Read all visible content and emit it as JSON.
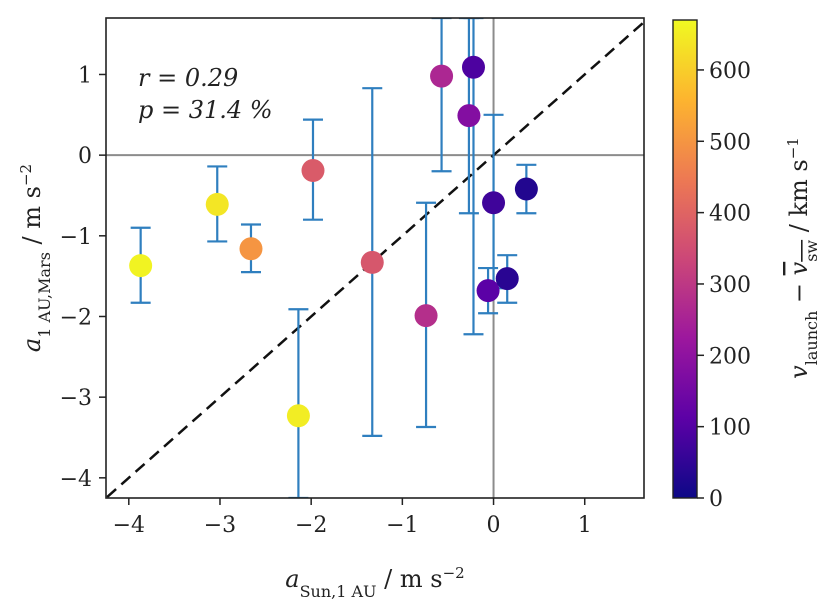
{
  "chart_data": {
    "type": "scatter",
    "xlabel": "a_Sun,1AU / m s^-2",
    "ylabel": "a_1AU,Mars / m s^-2",
    "xlim": [
      -4.25,
      1.65
    ],
    "ylim": [
      -4.25,
      1.7
    ],
    "x_ticks": [
      -4,
      -3,
      -2,
      -1,
      0,
      1
    ],
    "y_ticks": [
      -4,
      -3,
      -2,
      -1,
      0,
      1
    ],
    "x_tick_labels": [
      "−4",
      "−3",
      "−2",
      "−1",
      "0",
      "1"
    ],
    "y_tick_labels": [
      "−4",
      "−3",
      "−2",
      "−1",
      "0",
      "1"
    ],
    "annotations": [
      "r = 0.29",
      "p = 31.4 %"
    ],
    "reference_lines": {
      "horizontal_at": 0,
      "vertical_at": 0,
      "diagonal": "y = x (dashed)"
    },
    "grid": false,
    "error_bar_color": "#2f7fbf",
    "colorbar": {
      "label": "v_launch − v_sw / km s^-1",
      "range": [
        0,
        670
      ],
      "ticks": [
        0,
        100,
        200,
        300,
        400,
        500,
        600
      ],
      "tick_labels": [
        "0",
        "100",
        "200",
        "300",
        "400",
        "500",
        "600"
      ],
      "colormap": "plasma",
      "stops": [
        "#0d0887",
        "#5c01a6",
        "#9c179e",
        "#cc4778",
        "#ed7953",
        "#fdb42f",
        "#f0f921"
      ]
    },
    "points": [
      {
        "x": -3.87,
        "y": -1.37,
        "y_low": -1.83,
        "y_high": -0.9,
        "c": 660
      },
      {
        "x": -3.03,
        "y": -0.61,
        "y_low": -1.07,
        "y_high": -0.14,
        "c": 640
      },
      {
        "x": -2.66,
        "y": -1.16,
        "y_low": -1.45,
        "y_high": -0.86,
        "c": 500
      },
      {
        "x": -2.14,
        "y": -3.23,
        "y_low": -4.25,
        "y_high": -1.91,
        "c": 650
      },
      {
        "x": -1.98,
        "y": -0.19,
        "y_low": -0.8,
        "y_high": 0.44,
        "c": 380
      },
      {
        "x": -1.33,
        "y": -1.33,
        "y_low": -3.48,
        "y_high": 0.83,
        "c": 370
      },
      {
        "x": -0.74,
        "y": -1.99,
        "y_low": -3.37,
        "y_high": -0.59,
        "c": 280
      },
      {
        "x": -0.57,
        "y": 0.98,
        "y_low": -0.2,
        "y_high": 1.7,
        "c": 260
      },
      {
        "x": -0.27,
        "y": 0.49,
        "y_low": -0.72,
        "y_high": 1.7,
        "c": 180
      },
      {
        "x": -0.22,
        "y": 1.09,
        "y_low": -2.22,
        "y_high": 1.7,
        "c": 90
      },
      {
        "x": -0.06,
        "y": -1.68,
        "y_low": -1.96,
        "y_high": -1.4,
        "c": 110
      },
      {
        "x": 0.0,
        "y": -0.59,
        "y_low": -1.65,
        "y_high": 0.5,
        "c": 70
      },
      {
        "x": 0.15,
        "y": -1.53,
        "y_low": -1.83,
        "y_high": -1.24,
        "c": 40
      },
      {
        "x": 0.36,
        "y": -0.42,
        "y_low": -0.72,
        "y_high": -0.12,
        "c": 30
      }
    ]
  }
}
